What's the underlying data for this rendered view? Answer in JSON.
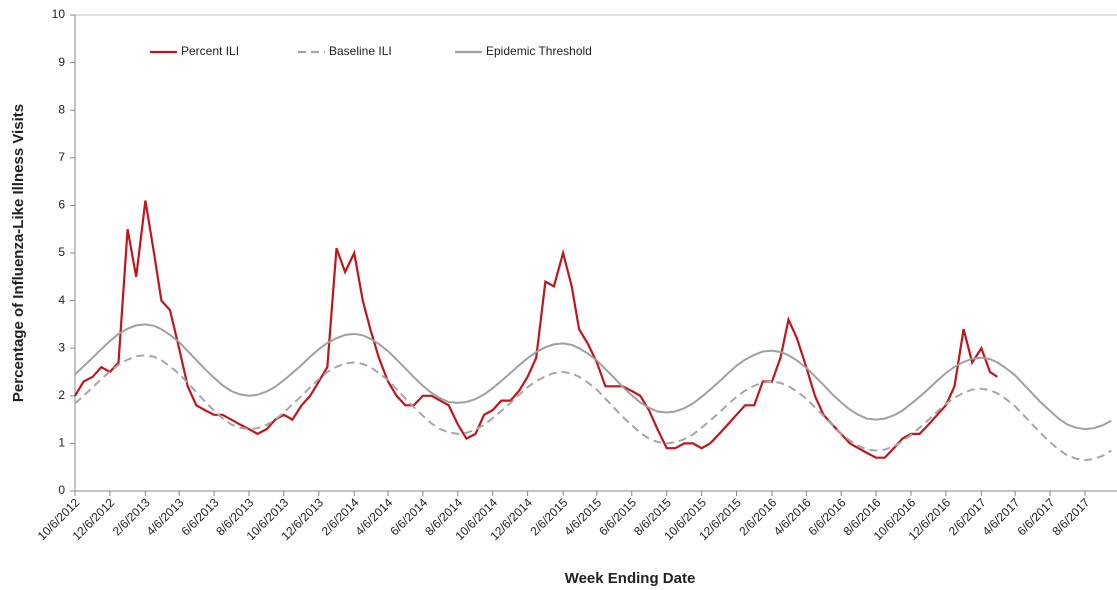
{
  "chart_data": {
    "type": "line",
    "x_label": "Week Ending Date",
    "y_label": "Percentage of Influenza-Like Illness Visits",
    "x": [
      "10/6/2012",
      "10/21/2012",
      "11/6/2012",
      "11/21/2012",
      "12/6/2012",
      "12/21/2012",
      "1/6/2013",
      "1/21/2013",
      "2/6/2013",
      "2/21/2013",
      "3/6/2013",
      "3/21/2013",
      "4/6/2013",
      "4/21/2013",
      "5/6/2013",
      "5/21/2013",
      "6/6/2013",
      "6/21/2013",
      "7/6/2013",
      "7/21/2013",
      "8/6/2013",
      "8/21/2013",
      "9/6/2013",
      "9/21/2013",
      "10/6/2013",
      "10/21/2013",
      "11/6/2013",
      "11/21/2013",
      "12/6/2013",
      "12/21/2013",
      "1/6/2014",
      "1/21/2014",
      "2/6/2014",
      "2/21/2014",
      "3/6/2014",
      "3/21/2014",
      "4/6/2014",
      "4/21/2014",
      "5/6/2014",
      "5/21/2014",
      "6/6/2014",
      "6/21/2014",
      "7/6/2014",
      "7/21/2014",
      "8/6/2014",
      "8/21/2014",
      "9/6/2014",
      "9/21/2014",
      "10/6/2014",
      "10/21/2014",
      "11/6/2014",
      "11/21/2014",
      "12/6/2014",
      "12/21/2014",
      "1/6/2015",
      "1/21/2015",
      "2/6/2015",
      "2/21/2015",
      "3/6/2015",
      "3/21/2015",
      "4/6/2015",
      "4/21/2015",
      "5/6/2015",
      "5/21/2015",
      "6/6/2015",
      "6/21/2015",
      "7/6/2015",
      "7/21/2015",
      "8/6/2015",
      "8/21/2015",
      "9/6/2015",
      "9/21/2015",
      "10/6/2015",
      "10/21/2015",
      "11/6/2015",
      "11/21/2015",
      "12/6/2015",
      "12/21/2015",
      "1/6/2016",
      "1/21/2016",
      "2/6/2016",
      "2/21/2016",
      "3/6/2016",
      "3/21/2016",
      "4/6/2016",
      "4/21/2016",
      "5/6/2016",
      "5/21/2016",
      "6/6/2016",
      "6/21/2016",
      "7/6/2016",
      "7/21/2016",
      "8/6/2016",
      "8/21/2016",
      "9/6/2016",
      "9/21/2016",
      "10/6/2016",
      "10/21/2016",
      "11/6/2016",
      "11/21/2016",
      "12/6/2016",
      "12/21/2016",
      "1/6/2017",
      "1/21/2017",
      "2/6/2017",
      "2/21/2017",
      "3/6/2017",
      "3/21/2017",
      "4/6/2017",
      "4/21/2017",
      "5/6/2017",
      "5/21/2017",
      "6/6/2017",
      "6/21/2017",
      "7/6/2017",
      "7/21/2017",
      "8/6/2017",
      "8/21/2017",
      "9/6/2017",
      "9/21/2017"
    ],
    "series": [
      {
        "name": "Percent ILI",
        "color": "#c0151b",
        "style": "solid",
        "values": [
          2.0,
          2.3,
          2.4,
          2.6,
          2.5,
          2.7,
          5.5,
          4.5,
          6.1,
          5.0,
          4.0,
          3.8,
          3.0,
          2.2,
          1.8,
          1.7,
          1.6,
          1.6,
          1.5,
          1.4,
          1.3,
          1.2,
          1.3,
          1.5,
          1.6,
          1.5,
          1.8,
          2.0,
          2.3,
          2.6,
          5.1,
          4.6,
          5.0,
          4.0,
          3.4,
          2.8,
          2.3,
          2.0,
          1.8,
          1.8,
          2.0,
          2.0,
          1.9,
          1.8,
          1.4,
          1.1,
          1.2,
          1.6,
          1.7,
          1.9,
          1.9,
          2.1,
          2.4,
          2.8,
          4.4,
          4.3,
          5.0,
          4.3,
          3.4,
          3.1,
          2.7,
          2.2,
          2.2,
          2.2,
          2.1,
          2.0,
          1.7,
          1.3,
          0.9,
          0.9,
          1.0,
          1.0,
          0.9,
          1.0,
          1.2,
          1.4,
          1.6,
          1.8,
          1.8,
          2.3,
          2.3,
          2.8,
          3.6,
          3.2,
          2.6,
          2.0,
          1.6,
          1.4,
          1.2,
          1.0,
          0.9,
          0.8,
          0.7,
          0.7,
          0.9,
          1.1,
          1.2,
          1.2,
          1.4,
          1.6,
          1.8,
          2.2,
          3.4,
          2.7,
          3.0,
          2.5,
          2.4,
          null,
          null,
          null,
          null,
          null,
          null,
          null,
          null,
          null,
          null,
          null,
          null,
          null
        ]
      },
      {
        "name": "Baseline ILI",
        "color": "#a6a6a6",
        "style": "dashed",
        "values": [
          1.84,
          2.0,
          2.18,
          2.35,
          2.51,
          2.65,
          2.76,
          2.83,
          2.85,
          2.82,
          2.75,
          2.62,
          2.46,
          2.27,
          2.08,
          1.88,
          1.69,
          1.53,
          1.4,
          1.33,
          1.3,
          1.32,
          1.39,
          1.5,
          1.65,
          1.82,
          2.0,
          2.18,
          2.35,
          2.5,
          2.61,
          2.68,
          2.7,
          2.67,
          2.6,
          2.48,
          2.33,
          2.14,
          1.95,
          1.76,
          1.58,
          1.42,
          1.3,
          1.23,
          1.2,
          1.22,
          1.29,
          1.39,
          1.53,
          1.68,
          1.85,
          2.02,
          2.18,
          2.31,
          2.41,
          2.48,
          2.5,
          2.47,
          2.4,
          2.28,
          2.13,
          1.94,
          1.75,
          1.56,
          1.38,
          1.22,
          1.1,
          1.03,
          1.0,
          1.02,
          1.09,
          1.19,
          1.33,
          1.48,
          1.65,
          1.82,
          1.98,
          2.11,
          2.21,
          2.28,
          2.3,
          2.27,
          2.2,
          2.09,
          1.94,
          1.76,
          1.58,
          1.39,
          1.21,
          1.06,
          0.95,
          0.87,
          0.85,
          0.87,
          0.94,
          1.04,
          1.18,
          1.33,
          1.5,
          1.67,
          1.83,
          1.96,
          2.06,
          2.13,
          2.15,
          2.12,
          2.05,
          1.93,
          1.78,
          1.59,
          1.4,
          1.21,
          1.03,
          0.87,
          0.75,
          0.68,
          0.65,
          0.67,
          0.74,
          0.85
        ]
      },
      {
        "name": "Epidemic Threshold",
        "color": "#a0a0a0",
        "style": "solid",
        "values": [
          2.45,
          2.62,
          2.8,
          2.98,
          3.15,
          3.3,
          3.41,
          3.48,
          3.5,
          3.47,
          3.4,
          3.28,
          3.13,
          2.94,
          2.75,
          2.56,
          2.38,
          2.22,
          2.1,
          2.03,
          2.0,
          2.02,
          2.09,
          2.19,
          2.33,
          2.48,
          2.65,
          2.82,
          2.98,
          3.11,
          3.21,
          3.28,
          3.3,
          3.27,
          3.2,
          3.09,
          2.94,
          2.76,
          2.58,
          2.39,
          2.21,
          2.06,
          1.95,
          1.87,
          1.85,
          1.87,
          1.93,
          2.03,
          2.16,
          2.31,
          2.48,
          2.64,
          2.79,
          2.92,
          3.02,
          3.08,
          3.1,
          3.07,
          3.0,
          2.89,
          2.74,
          2.56,
          2.38,
          2.19,
          2.01,
          1.86,
          1.75,
          1.67,
          1.65,
          1.67,
          1.74,
          1.84,
          1.98,
          2.13,
          2.3,
          2.47,
          2.63,
          2.76,
          2.86,
          2.93,
          2.95,
          2.92,
          2.85,
          2.74,
          2.59,
          2.41,
          2.23,
          2.04,
          1.86,
          1.71,
          1.6,
          1.52,
          1.5,
          1.52,
          1.59,
          1.69,
          1.83,
          1.98,
          2.15,
          2.32,
          2.48,
          2.61,
          2.71,
          2.78,
          2.8,
          2.77,
          2.7,
          2.58,
          2.43,
          2.24,
          2.05,
          1.86,
          1.68,
          1.52,
          1.4,
          1.33,
          1.3,
          1.32,
          1.38,
          1.48
        ]
      }
    ],
    "xlim": [
      "10/6/2012",
      "10/1/2017"
    ],
    "xticks": [
      "10/6/2012",
      "12/6/2012",
      "2/6/2013",
      "4/6/2013",
      "6/6/2013",
      "8/6/2013",
      "10/6/2013",
      "12/6/2013",
      "2/6/2014",
      "4/6/2014",
      "6/6/2014",
      "8/6/2014",
      "10/6/2014",
      "12/6/2014",
      "2/6/2015",
      "4/6/2015",
      "6/6/2015",
      "8/6/2015",
      "10/6/2015",
      "12/6/2015",
      "2/6/2016",
      "4/6/2016",
      "6/6/2016",
      "8/6/2016",
      "10/6/2016",
      "12/6/2016",
      "2/6/2017",
      "4/6/2017",
      "6/6/2017",
      "8/6/2017"
    ],
    "ylim": [
      0,
      10
    ],
    "yticks": [
      0,
      1,
      2,
      3,
      4,
      5,
      6,
      7,
      8,
      9,
      10
    ],
    "legend": "top-left",
    "grid": false
  }
}
